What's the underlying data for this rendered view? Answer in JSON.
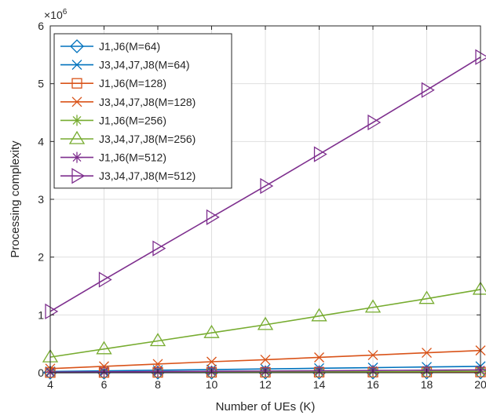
{
  "chart_data": {
    "type": "line",
    "xlabel": "Number of UEs (K)",
    "ylabel": "Processing complexity",
    "y_exponent_label": "×10",
    "y_exponent_power": "6",
    "x": [
      4,
      6,
      8,
      10,
      12,
      14,
      16,
      18,
      20
    ],
    "xlim": [
      4,
      20
    ],
    "ylim": [
      0,
      6
    ],
    "x_ticks": [
      "4",
      "6",
      "8",
      "10",
      "12",
      "14",
      "16",
      "18",
      "20"
    ],
    "y_ticks": [
      "0",
      "1",
      "2",
      "3",
      "4",
      "5",
      "6"
    ],
    "y_tick_values": [
      0,
      1,
      2,
      3,
      4,
      5,
      6
    ],
    "grid": true,
    "legend_position": "top-left",
    "series": [
      {
        "name": "J1,J6(M=64)",
        "color": "#0072BD",
        "marker": "diamond",
        "values": [
          0.0012,
          0.0018,
          0.0024,
          0.003,
          0.0036,
          0.0042,
          0.0048,
          0.0054,
          0.006
        ]
      },
      {
        "name": "J3,J4,J7,J8(M=64)",
        "color": "#0072BD",
        "marker": "x",
        "values": [
          0.021,
          0.032,
          0.043,
          0.054,
          0.065,
          0.077,
          0.088,
          0.099,
          0.11
        ]
      },
      {
        "name": "J1,J6(M=128)",
        "color": "#D95319",
        "marker": "square",
        "values": [
          0.0024,
          0.0036,
          0.0048,
          0.006,
          0.0072,
          0.0084,
          0.0096,
          0.0108,
          0.012
        ]
      },
      {
        "name": "J3,J4,J7,J8(M=128)",
        "color": "#D95319",
        "marker": "x",
        "values": [
          0.07,
          0.11,
          0.15,
          0.19,
          0.225,
          0.265,
          0.305,
          0.345,
          0.385
        ]
      },
      {
        "name": "J1,J6(M=256)",
        "color": "#77AC30",
        "marker": "asterisk",
        "values": [
          0.0048,
          0.0072,
          0.0096,
          0.012,
          0.0144,
          0.0168,
          0.0192,
          0.0216,
          0.024
        ]
      },
      {
        "name": "J3,J4,J7,J8(M=256)",
        "color": "#77AC30",
        "marker": "triangle-up",
        "values": [
          0.27,
          0.41,
          0.55,
          0.69,
          0.83,
          0.98,
          1.13,
          1.28,
          1.44
        ]
      },
      {
        "name": "J1,J6(M=512)",
        "color": "#7E2F8E",
        "marker": "asterisk",
        "values": [
          0.0096,
          0.0144,
          0.0192,
          0.024,
          0.0288,
          0.0336,
          0.0384,
          0.0432,
          0.048
        ]
      },
      {
        "name": "J3,J4,J7,J8(M=512)",
        "color": "#7E2F8E",
        "marker": "triangle-right",
        "values": [
          1.06,
          1.61,
          2.15,
          2.69,
          3.23,
          3.78,
          4.33,
          4.89,
          5.46
        ]
      }
    ]
  }
}
